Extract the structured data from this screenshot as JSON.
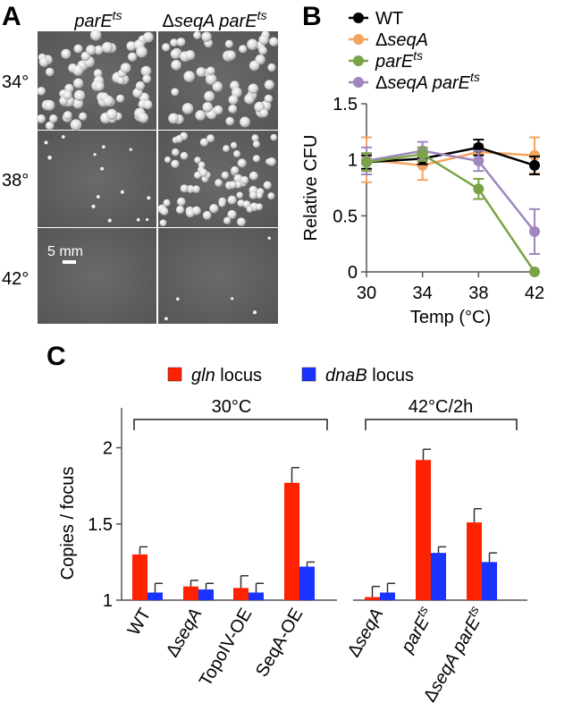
{
  "panel_a": {
    "letter": "A",
    "col_headers": [
      {
        "prefix": "",
        "italic": "parE",
        "sup": "ts"
      },
      {
        "prefix": "Δ",
        "italic": "seqA parE",
        "sup": "ts"
      }
    ],
    "row_labels": [
      "34°",
      "38°",
      "42°"
    ],
    "scale_bar": "5 mm"
  },
  "panel_b": {
    "letter": "B",
    "legend": [
      {
        "prefix": "",
        "italic": "",
        "plain": "WT",
        "sup": "",
        "color": "#000000"
      },
      {
        "prefix": "Δ",
        "italic": "seqA",
        "plain": "",
        "sup": "",
        "color": "#f4a460"
      },
      {
        "prefix": "",
        "italic": "parE",
        "plain": "",
        "sup": "ts",
        "color": "#7aa346"
      },
      {
        "prefix": "Δ",
        "italic": "seqA parE",
        "plain": "",
        "sup": "ts",
        "color": "#9f86bf"
      }
    ]
  },
  "panel_c": {
    "letter": "C",
    "legend": [
      {
        "italic": "gln",
        "plain": " locus",
        "color": "#ff2200"
      },
      {
        "italic": "dnaB",
        "plain": " locus",
        "color": "#1a33ff"
      }
    ],
    "group_labels": [
      "30°C",
      "42°C/2h"
    ],
    "categories": [
      {
        "prefix": "",
        "italic": "",
        "plain": "WT",
        "sup": ""
      },
      {
        "prefix": "Δ",
        "italic": "seqA",
        "plain": "",
        "sup": ""
      },
      {
        "prefix": "",
        "italic": "",
        "plain": "TopoIV-OE",
        "sup": ""
      },
      {
        "prefix": "",
        "italic": "",
        "plain": "SeqA-OE",
        "sup": ""
      },
      {
        "prefix": "Δ",
        "italic": "seqA",
        "plain": "",
        "sup": ""
      },
      {
        "prefix": "",
        "italic": "parE",
        "plain": "",
        "sup": "ts"
      },
      {
        "prefix": "Δ",
        "italic": "seqA parE",
        "plain": "",
        "sup": "ts"
      }
    ]
  },
  "chart_data": [
    {
      "type": "line",
      "xlabel": "Temp (°C)",
      "ylabel": "Relative CFU",
      "x": [
        30,
        34,
        38,
        42
      ],
      "xlim": [
        30,
        42
      ],
      "ylim": [
        0,
        1.5
      ],
      "xticks": [
        "30",
        "34",
        "38",
        "42"
      ],
      "yticks": [
        "0",
        "0.5",
        "1",
        "1.5"
      ],
      "series": [
        {
          "name": "WT",
          "values": [
            0.98,
            1.01,
            1.11,
            0.95
          ],
          "errors": [
            0.06,
            0.05,
            0.07,
            0.08
          ]
        },
        {
          "name": "ΔseqA",
          "values": [
            1.0,
            0.95,
            1.07,
            1.04
          ],
          "errors": [
            0.2,
            0.13,
            0.07,
            0.16
          ]
        },
        {
          "name": "parEts",
          "values": [
            0.98,
            1.05,
            0.74,
            0.0
          ],
          "errors": [
            0.08,
            0.06,
            0.09,
            0.0
          ]
        },
        {
          "name": "ΔseqA parEts",
          "values": [
            0.99,
            1.08,
            0.99,
            0.36
          ],
          "errors": [
            0.12,
            0.08,
            0.09,
            0.2
          ]
        }
      ]
    },
    {
      "type": "bar",
      "ylabel": "Copies / focus",
      "ylim": [
        1,
        2.25
      ],
      "yticks": [
        "1",
        "1.5",
        "2"
      ],
      "categories": [
        "WT",
        "ΔseqA",
        "TopoIV-OE",
        "SeqA-OE",
        "ΔseqA",
        "parEts",
        "ΔseqA parEts"
      ],
      "series": [
        {
          "name": "gln locus",
          "values": [
            1.3,
            1.09,
            1.08,
            1.77,
            1.02,
            1.92,
            1.51
          ],
          "errors": [
            0.05,
            0.04,
            0.08,
            0.1,
            0.07,
            0.07,
            0.09
          ]
        },
        {
          "name": "dnaB locus",
          "values": [
            1.05,
            1.07,
            1.05,
            1.22,
            1.05,
            1.31,
            1.25
          ],
          "errors": [
            0.06,
            0.04,
            0.06,
            0.03,
            0.06,
            0.04,
            0.06
          ]
        }
      ]
    }
  ]
}
